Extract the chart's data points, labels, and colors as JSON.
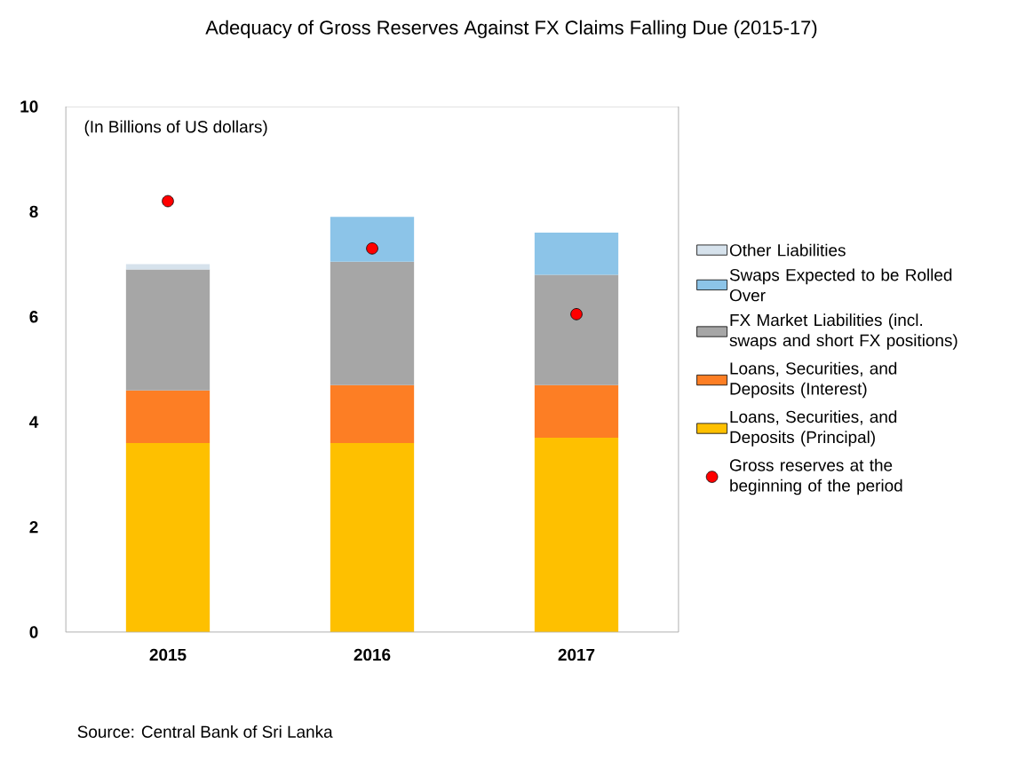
{
  "chart_data": {
    "type": "bar",
    "title": "Adequacy of Gross Reserves Against FX Claims Falling Due (2015-17)",
    "categories": [
      "2015",
      "2016",
      "2017"
    ],
    "series": [
      {
        "name": "Loans, Securities, and Deposits (Principal)",
        "color": "#fec000",
        "values": [
          3.6,
          3.6,
          3.7
        ]
      },
      {
        "name": "Loans, Securities, and Deposits (Interest)",
        "color": "#fd7e24",
        "values": [
          1.0,
          1.1,
          1.0
        ]
      },
      {
        "name": "FX Market Liabilities (incl. swaps and short FX positions)",
        "color": "#a6a6a6",
        "values": [
          2.3,
          2.35,
          2.1
        ]
      },
      {
        "name": "Swaps Expected to be Rolled Over",
        "color": "#8cc4e8",
        "values": [
          null,
          0.85,
          0.8
        ]
      },
      {
        "name": "Other Liabilities",
        "color": "#d6e2ec",
        "values": [
          0.1,
          null,
          null
        ]
      },
      {
        "name": "Gross reserves at the beginning of the period",
        "type": "scatter",
        "color": "#ff0000",
        "values": [
          8.2,
          7.3,
          6.05
        ]
      }
    ],
    "stacked": true,
    "marker": "circle",
    "legend": "right",
    "ylim": [
      0,
      10
    ],
    "yticks": [
      0,
      2,
      4,
      6,
      8,
      10
    ],
    "annotations": [
      "(In Billions of US dollars)",
      "Source: Central Bank of Sri Lanka"
    ]
  }
}
